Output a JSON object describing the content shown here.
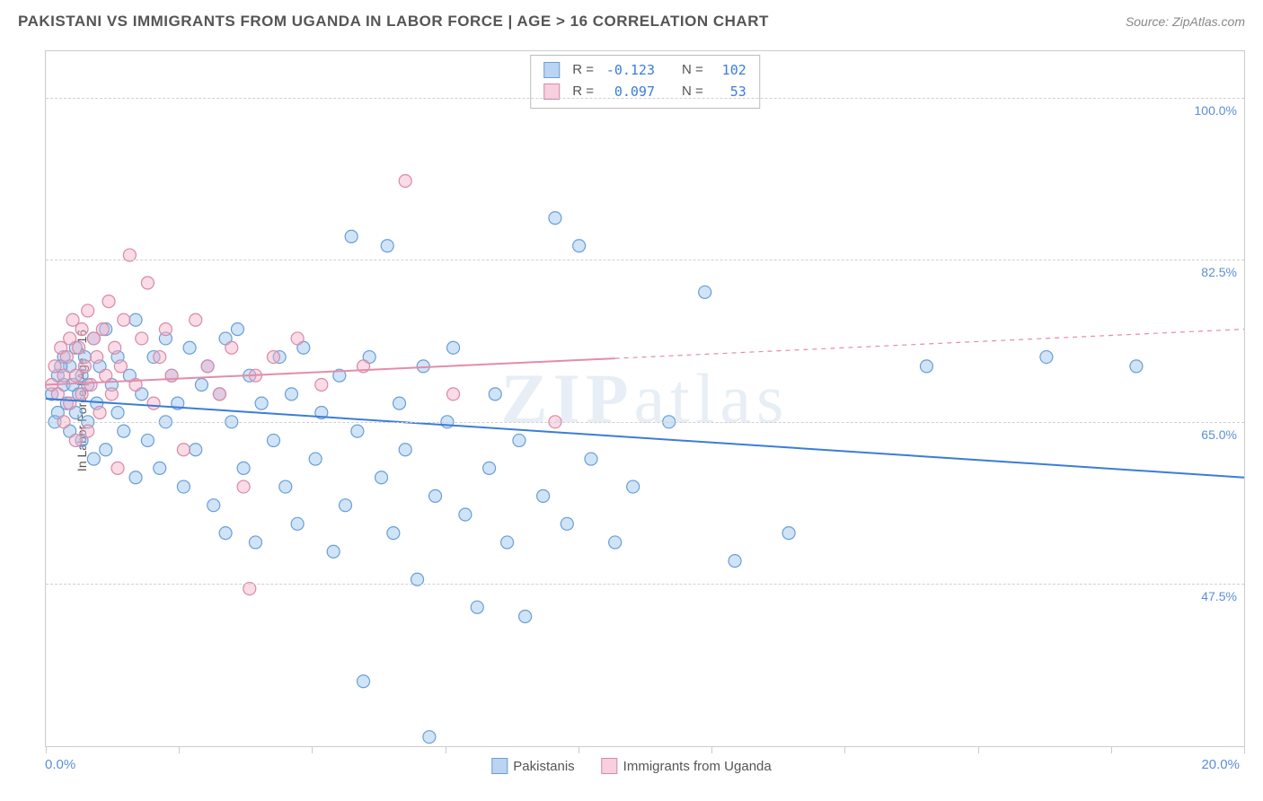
{
  "title": "PAKISTANI VS IMMIGRANTS FROM UGANDA IN LABOR FORCE | AGE > 16 CORRELATION CHART",
  "source": "Source: ZipAtlas.com",
  "y_axis_label": "In Labor Force | Age > 16",
  "watermark": "ZIPatlas",
  "x_min_label": "0.0%",
  "x_max_label": "20.0%",
  "chart": {
    "type": "scatter",
    "xlim": [
      0,
      20
    ],
    "ylim": [
      30,
      105
    ],
    "y_gridlines": [
      47.5,
      65.0,
      82.5,
      100.0
    ],
    "y_tick_labels": [
      "47.5%",
      "65.0%",
      "82.5%",
      "100.0%"
    ],
    "x_ticks": [
      0,
      2.22,
      4.44,
      6.67,
      8.89,
      11.11,
      13.33,
      15.56,
      17.78,
      20
    ],
    "background_color": "#ffffff",
    "grid_color": "#d0d0d0",
    "axis_color": "#cccccc",
    "tick_label_color": "#5b8fd6",
    "marker_radius": 7,
    "marker_stroke_width": 1.2,
    "trend_line_width": 2
  },
  "series": [
    {
      "name": "Pakistanis",
      "fill": "rgba(150,195,240,0.45)",
      "stroke": "#6a9ed4",
      "R": "-0.123",
      "N": "102",
      "trend": {
        "x1": 0,
        "y1": 67.5,
        "x2": 20,
        "y2": 59,
        "dash_from": 20,
        "color": "#3b7dd8"
      },
      "points": [
        [
          0.1,
          68
        ],
        [
          0.2,
          70
        ],
        [
          0.2,
          66
        ],
        [
          0.3,
          69
        ],
        [
          0.3,
          72
        ],
        [
          0.35,
          67
        ],
        [
          0.4,
          71
        ],
        [
          0.4,
          64
        ],
        [
          0.45,
          69
        ],
        [
          0.5,
          73
        ],
        [
          0.5,
          66
        ],
        [
          0.55,
          68
        ],
        [
          0.6,
          70
        ],
        [
          0.6,
          63
        ],
        [
          0.65,
          72
        ],
        [
          0.7,
          65
        ],
        [
          0.7,
          69
        ],
        [
          0.8,
          74
        ],
        [
          0.8,
          61
        ],
        [
          0.85,
          67
        ],
        [
          0.9,
          71
        ],
        [
          1.0,
          62
        ],
        [
          1.0,
          75
        ],
        [
          1.1,
          69
        ],
        [
          1.2,
          66
        ],
        [
          1.2,
          72
        ],
        [
          1.3,
          64
        ],
        [
          1.4,
          70
        ],
        [
          1.5,
          76
        ],
        [
          1.5,
          59
        ],
        [
          1.6,
          68
        ],
        [
          1.7,
          63
        ],
        [
          1.8,
          72
        ],
        [
          1.9,
          60
        ],
        [
          2.0,
          74
        ],
        [
          2.0,
          65
        ],
        [
          2.1,
          70
        ],
        [
          2.2,
          67
        ],
        [
          2.3,
          58
        ],
        [
          2.4,
          73
        ],
        [
          2.5,
          62
        ],
        [
          2.6,
          69
        ],
        [
          2.7,
          71
        ],
        [
          2.8,
          56
        ],
        [
          2.9,
          68
        ],
        [
          3.0,
          53
        ],
        [
          3.0,
          74
        ],
        [
          3.1,
          65
        ],
        [
          3.2,
          75
        ],
        [
          3.3,
          60
        ],
        [
          3.4,
          70
        ],
        [
          3.5,
          52
        ],
        [
          3.6,
          67
        ],
        [
          3.8,
          63
        ],
        [
          3.9,
          72
        ],
        [
          4.0,
          58
        ],
        [
          4.1,
          68
        ],
        [
          4.2,
          54
        ],
        [
          4.3,
          73
        ],
        [
          4.5,
          61
        ],
        [
          4.6,
          66
        ],
        [
          4.8,
          51
        ],
        [
          4.9,
          70
        ],
        [
          5.0,
          56
        ],
        [
          5.1,
          85
        ],
        [
          5.2,
          64
        ],
        [
          5.3,
          37
        ],
        [
          5.4,
          72
        ],
        [
          5.6,
          59
        ],
        [
          5.7,
          84
        ],
        [
          5.8,
          53
        ],
        [
          5.9,
          67
        ],
        [
          6.0,
          62
        ],
        [
          6.2,
          48
        ],
        [
          6.3,
          71
        ],
        [
          6.4,
          31
        ],
        [
          6.5,
          57
        ],
        [
          6.7,
          65
        ],
        [
          6.8,
          73
        ],
        [
          7.0,
          55
        ],
        [
          7.2,
          45
        ],
        [
          7.4,
          60
        ],
        [
          7.5,
          68
        ],
        [
          7.7,
          52
        ],
        [
          7.9,
          63
        ],
        [
          8.0,
          44
        ],
        [
          8.3,
          57
        ],
        [
          8.5,
          87
        ],
        [
          8.7,
          54
        ],
        [
          8.9,
          84
        ],
        [
          9.1,
          61
        ],
        [
          9.5,
          52
        ],
        [
          9.8,
          58
        ],
        [
          10.4,
          65
        ],
        [
          11.0,
          79
        ],
        [
          11.5,
          50
        ],
        [
          12.4,
          53
        ],
        [
          14.7,
          71
        ],
        [
          16.7,
          72
        ],
        [
          18.2,
          71
        ],
        [
          0.15,
          65
        ],
        [
          0.25,
          71
        ]
      ]
    },
    {
      "name": "Immigrants from Uganda",
      "fill": "rgba(245,175,200,0.45)",
      "stroke": "#d68aa8",
      "R": "0.097",
      "N": "53",
      "trend": {
        "x1": 0,
        "y1": 69,
        "x2": 20,
        "y2": 75,
        "dash_from": 9.5,
        "color": "#e58ca8"
      },
      "points": [
        [
          0.1,
          69
        ],
        [
          0.15,
          71
        ],
        [
          0.2,
          68
        ],
        [
          0.25,
          73
        ],
        [
          0.3,
          70
        ],
        [
          0.3,
          65
        ],
        [
          0.35,
          72
        ],
        [
          0.4,
          74
        ],
        [
          0.4,
          67
        ],
        [
          0.45,
          76
        ],
        [
          0.5,
          70
        ],
        [
          0.5,
          63
        ],
        [
          0.55,
          73
        ],
        [
          0.6,
          75
        ],
        [
          0.6,
          68
        ],
        [
          0.65,
          71
        ],
        [
          0.7,
          77
        ],
        [
          0.7,
          64
        ],
        [
          0.75,
          69
        ],
        [
          0.8,
          74
        ],
        [
          0.85,
          72
        ],
        [
          0.9,
          66
        ],
        [
          0.95,
          75
        ],
        [
          1.0,
          70
        ],
        [
          1.05,
          78
        ],
        [
          1.1,
          68
        ],
        [
          1.15,
          73
        ],
        [
          1.2,
          60
        ],
        [
          1.25,
          71
        ],
        [
          1.3,
          76
        ],
        [
          1.4,
          83
        ],
        [
          1.5,
          69
        ],
        [
          1.6,
          74
        ],
        [
          1.7,
          80
        ],
        [
          1.8,
          67
        ],
        [
          1.9,
          72
        ],
        [
          2.0,
          75
        ],
        [
          2.1,
          70
        ],
        [
          2.3,
          62
        ],
        [
          2.5,
          76
        ],
        [
          2.7,
          71
        ],
        [
          2.9,
          68
        ],
        [
          3.1,
          73
        ],
        [
          3.3,
          58
        ],
        [
          3.5,
          70
        ],
        [
          3.8,
          72
        ],
        [
          4.2,
          74
        ],
        [
          4.6,
          69
        ],
        [
          5.3,
          71
        ],
        [
          6.0,
          91
        ],
        [
          6.8,
          68
        ],
        [
          8.5,
          65
        ],
        [
          3.4,
          47
        ]
      ]
    }
  ],
  "stats_box": {
    "R_label": "R =",
    "N_label": "N ="
  },
  "bottom_legend": [
    "Pakistanis",
    "Immigrants from Uganda"
  ]
}
